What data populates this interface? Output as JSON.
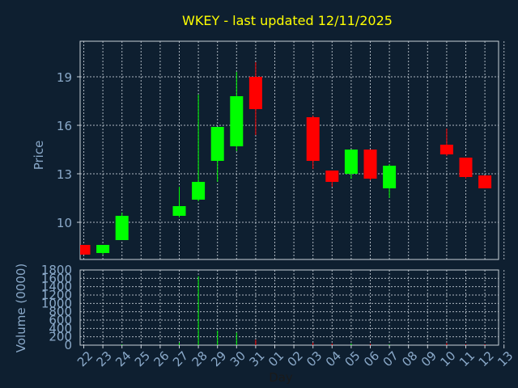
{
  "chart_data": {
    "type": "candlestick",
    "title": "WKEY - last updated 12/11/2025",
    "xlabel": "Day",
    "price_panel": {
      "ylabel": "Price",
      "yticks": [
        10,
        13,
        16,
        19
      ],
      "ylim": [
        7.7,
        21.2
      ]
    },
    "volume_panel": {
      "ylabel": "Volume (0000)",
      "yticks": [
        0,
        200,
        400,
        600,
        800,
        1000,
        1200,
        1400,
        1600,
        1800
      ],
      "ylim": [
        0,
        1800
      ]
    },
    "x_ticks": [
      "22",
      "23",
      "24",
      "25",
      "26",
      "27",
      "28",
      "29",
      "30",
      "31",
      "01",
      "02",
      "03",
      "04",
      "05",
      "06",
      "07",
      "08",
      "09",
      "10",
      "11",
      "12",
      "13"
    ],
    "candles": [
      {
        "day": "22",
        "open": 8.6,
        "close": 8.0,
        "high": 8.6,
        "low": 8.0,
        "volume": 0
      },
      {
        "day": "23",
        "open": 8.1,
        "close": 8.6,
        "high": 8.6,
        "low": 8.0,
        "volume": 0
      },
      {
        "day": "24",
        "open": 8.9,
        "close": 10.4,
        "high": 10.6,
        "low": 8.9,
        "volume": 20
      },
      {
        "day": "27",
        "open": 10.4,
        "close": 11.0,
        "high": 12.2,
        "low": 10.3,
        "volume": 60
      },
      {
        "day": "28",
        "open": 11.4,
        "close": 12.5,
        "high": 17.9,
        "low": 11.3,
        "volume": 1650
      },
      {
        "day": "29",
        "open": 13.8,
        "close": 15.9,
        "high": 15.9,
        "low": 12.5,
        "volume": 350
      },
      {
        "day": "30",
        "open": 14.7,
        "close": 17.8,
        "high": 19.3,
        "low": 14.4,
        "volume": 300
      },
      {
        "day": "31",
        "open": 19.0,
        "close": 17.0,
        "high": 19.9,
        "low": 15.4,
        "volume": 130
      },
      {
        "day": "03",
        "open": 16.5,
        "close": 13.8,
        "high": 16.6,
        "low": 13.3,
        "volume": 60
      },
      {
        "day": "04",
        "open": 13.2,
        "close": 12.5,
        "high": 13.2,
        "low": 12.2,
        "volume": 40
      },
      {
        "day": "05",
        "open": 13.0,
        "close": 14.5,
        "high": 14.5,
        "low": 12.7,
        "volume": 40
      },
      {
        "day": "06",
        "open": 14.5,
        "close": 12.7,
        "high": 14.5,
        "low": 12.6,
        "volume": 30
      },
      {
        "day": "07",
        "open": 12.1,
        "close": 13.5,
        "high": 13.6,
        "low": 11.5,
        "volume": 20
      },
      {
        "day": "10",
        "open": 14.8,
        "close": 14.2,
        "high": 15.8,
        "low": 14.1,
        "volume": 50
      },
      {
        "day": "11",
        "open": 14.0,
        "close": 12.8,
        "high": 14.0,
        "low": 12.7,
        "volume": 20
      },
      {
        "day": "12",
        "open": 12.9,
        "close": 12.1,
        "high": 12.9,
        "low": 12.1,
        "volume": 20
      }
    ],
    "grid": true,
    "up_color": "#00ff00",
    "down_color": "#ff0000",
    "background_color": "#0e1f30",
    "title_color": "#ffff00",
    "text_color": "#8aa9c9",
    "grid_color": "#c8d0d8"
  }
}
